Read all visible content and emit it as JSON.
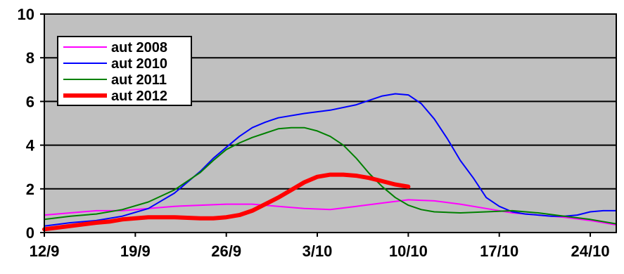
{
  "chart_data": {
    "type": "line",
    "title": "",
    "xlabel": "",
    "ylabel": "",
    "xlim": [
      0,
      44
    ],
    "ylim": [
      0,
      10
    ],
    "grid": true,
    "legend": "top-left",
    "plot_background": "#c0c0c0",
    "x_ticks": [
      {
        "x": 0,
        "label": "12/9"
      },
      {
        "x": 7,
        "label": "19/9"
      },
      {
        "x": 14,
        "label": "26/9"
      },
      {
        "x": 21,
        "label": "3/10"
      },
      {
        "x": 28,
        "label": "10/10"
      },
      {
        "x": 35,
        "label": "17/10"
      },
      {
        "x": 42,
        "label": "24/10"
      }
    ],
    "y_ticks": [
      0,
      2,
      4,
      6,
      8,
      10
    ],
    "series": [
      {
        "name": "aut 2008",
        "color": "#ff00ff",
        "width": 2,
        "x": [
          0,
          2,
          4,
          6,
          8,
          10,
          12,
          14,
          16,
          18,
          20,
          22,
          24,
          26,
          28,
          30,
          32,
          34,
          36,
          38,
          40,
          42,
          44
        ],
        "y": [
          0.8,
          0.9,
          1.0,
          1.0,
          1.1,
          1.2,
          1.25,
          1.3,
          1.3,
          1.2,
          1.1,
          1.05,
          1.2,
          1.35,
          1.5,
          1.45,
          1.3,
          1.1,
          0.9,
          0.8,
          0.7,
          0.55,
          0.35
        ]
      },
      {
        "name": "aut 2010",
        "color": "#0000ff",
        "width": 2,
        "x": [
          0,
          2,
          4,
          6,
          8,
          10,
          12,
          13,
          14,
          15,
          16,
          17,
          18,
          20,
          22,
          24,
          25,
          26,
          27,
          28,
          29,
          30,
          31,
          32,
          33,
          34,
          35,
          36,
          37,
          38,
          39,
          40,
          41,
          42,
          43,
          44
        ],
        "y": [
          0.3,
          0.45,
          0.55,
          0.75,
          1.1,
          1.8,
          2.8,
          3.4,
          3.9,
          4.4,
          4.8,
          5.05,
          5.25,
          5.45,
          5.6,
          5.85,
          6.05,
          6.25,
          6.35,
          6.3,
          5.9,
          5.2,
          4.3,
          3.3,
          2.5,
          1.6,
          1.2,
          0.95,
          0.85,
          0.8,
          0.75,
          0.75,
          0.8,
          0.95,
          1.0,
          1.0
        ]
      },
      {
        "name": "aut 2011",
        "color": "#008000",
        "width": 2,
        "x": [
          0,
          2,
          4,
          6,
          8,
          10,
          12,
          13,
          14,
          15,
          16,
          17,
          18,
          19,
          20,
          21,
          22,
          23,
          24,
          25,
          26,
          27,
          28,
          29,
          30,
          32,
          34,
          36,
          38,
          40,
          42,
          44
        ],
        "y": [
          0.6,
          0.75,
          0.85,
          1.05,
          1.4,
          1.95,
          2.75,
          3.3,
          3.8,
          4.1,
          4.35,
          4.55,
          4.75,
          4.8,
          4.8,
          4.65,
          4.4,
          4.0,
          3.4,
          2.7,
          2.1,
          1.6,
          1.25,
          1.05,
          0.95,
          0.9,
          0.95,
          1.0,
          0.9,
          0.75,
          0.6,
          0.4
        ]
      },
      {
        "name": "aut 2012",
        "color": "#ff0000",
        "width": 6,
        "x": [
          0,
          2,
          4,
          5,
          6,
          8,
          10,
          12,
          13,
          14,
          15,
          16,
          17,
          18,
          19,
          20,
          21,
          22,
          23,
          24,
          25,
          26,
          27,
          28
        ],
        "y": [
          0.15,
          0.3,
          0.45,
          0.5,
          0.6,
          0.7,
          0.7,
          0.65,
          0.65,
          0.7,
          0.8,
          1.0,
          1.3,
          1.6,
          1.95,
          2.3,
          2.55,
          2.65,
          2.65,
          2.6,
          2.5,
          2.35,
          2.2,
          2.1
        ]
      }
    ]
  }
}
